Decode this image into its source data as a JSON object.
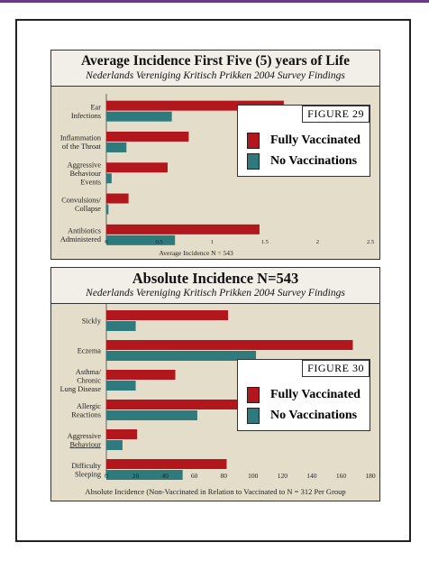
{
  "colors": {
    "vaccinated": "#b3171e",
    "unvaccinated": "#2e7a7c",
    "panel_bg": "#e4ddc9"
  },
  "chart_data": [
    {
      "type": "bar",
      "orientation": "horizontal",
      "title": "Average Incidence First Five (5) years of Life",
      "subtitle": "Nederlands Vereniging Kritisch Prikken 2004 Survey Findings",
      "figure_label": "FIGURE 29",
      "categories": [
        [
          "Ear",
          "Infections"
        ],
        [
          "Inflammation",
          "of the Throat"
        ],
        [
          "Aggressive",
          "Behaviour",
          "Events"
        ],
        [
          "Convulsions/",
          "Collapse"
        ],
        [
          "Antibiotics",
          "Administered"
        ]
      ],
      "series": [
        {
          "name": "Fully Vaccinated",
          "values": [
            1.68,
            0.78,
            0.58,
            0.21,
            1.45
          ]
        },
        {
          "name": "No Vaccinations",
          "values": [
            0.62,
            0.19,
            0.05,
            0.02,
            0.65
          ]
        }
      ],
      "xlim": [
        0,
        2.5
      ],
      "xticks": [
        "0",
        "0.5",
        "1",
        "1.5",
        "2",
        "2.5"
      ],
      "xlabel": "Average Incidence N = 543",
      "legend_position": "right"
    },
    {
      "type": "bar",
      "orientation": "horizontal",
      "title": "Absolute Incidence N=543",
      "subtitle": "Nederlands Vereniging Kritisch Prikken 2004 Survey Findings",
      "figure_label": "FIGURE 30",
      "categories": [
        [
          "Sickly"
        ],
        [
          "Eczema"
        ],
        [
          "Asthma/",
          "Chronic",
          "Lung Disease"
        ],
        [
          "Allergic",
          "Reactions"
        ],
        [
          "Aggressive",
          "Behaviour"
        ],
        [
          "Difficulty",
          "Sleeping"
        ]
      ],
      "series": [
        {
          "name": "Fully Vaccinated",
          "values": [
            83,
            168,
            47,
            90,
            21,
            82
          ]
        },
        {
          "name": "No Vaccinations",
          "values": [
            20,
            102,
            20,
            62,
            11,
            52
          ]
        }
      ],
      "xlim": [
        0,
        180
      ],
      "xticks": [
        "0",
        "20",
        "40",
        "60",
        "80",
        "100",
        "120",
        "140",
        "160",
        "180"
      ],
      "xlabel": "Absolute Incidence (Non-Vaccinated in Relation to Vaccinated to N = 312 Per Group",
      "legend_position": "right"
    }
  ]
}
